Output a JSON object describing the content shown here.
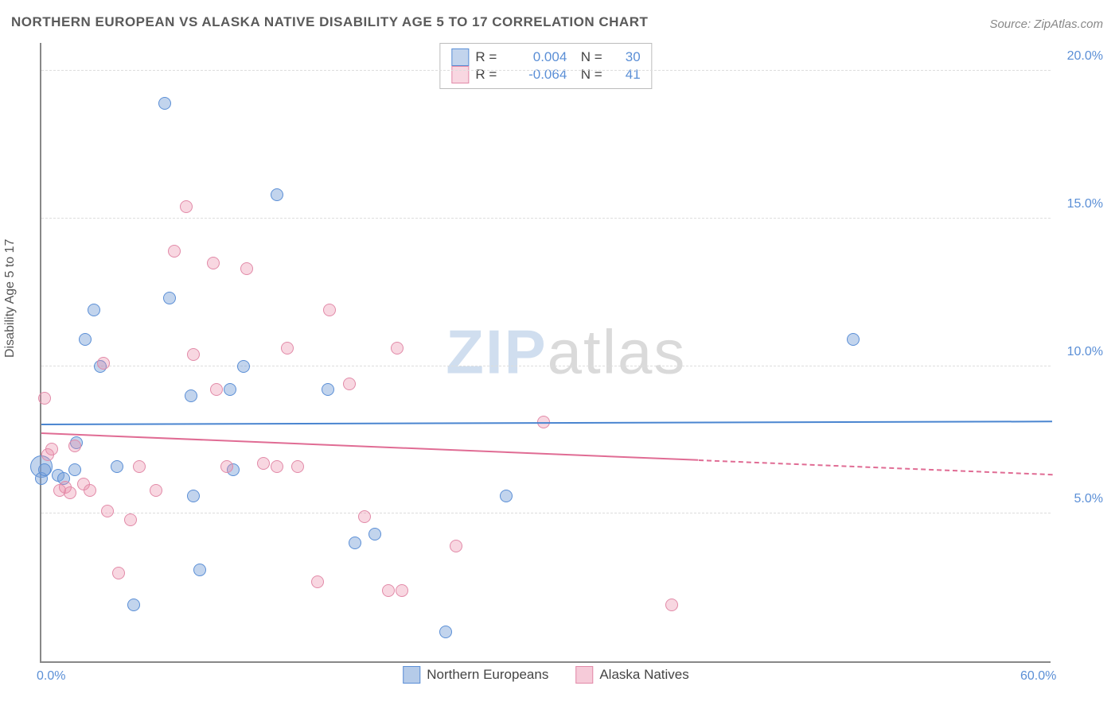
{
  "title": "NORTHERN EUROPEAN VS ALASKA NATIVE DISABILITY AGE 5 TO 17 CORRELATION CHART",
  "source": "Source: ZipAtlas.com",
  "ylabel": "Disability Age 5 to 17",
  "watermark": {
    "zip": "ZIP",
    "atlas": "atlas"
  },
  "chart": {
    "type": "scatter",
    "xlim": [
      0,
      60
    ],
    "ylim": [
      0,
      21
    ],
    "yticks": [
      5,
      10,
      15,
      20
    ],
    "ytick_labels": [
      "5.0%",
      "10.0%",
      "15.0%",
      "20.0%"
    ],
    "xticks": [
      0,
      60
    ],
    "xtick_labels": [
      "0.0%",
      "60.0%"
    ],
    "grid_color": "#dddddd",
    "axis_color": "#888888",
    "background": "#ffffff",
    "marker_radius": 8,
    "series": [
      {
        "name": "Northern Europeans",
        "key": "ne",
        "fill": "rgba(120,160,215,0.45)",
        "stroke": "#5b8fd6",
        "R": "0.004",
        "N": "30",
        "trend": {
          "y1": 8.0,
          "y2": 8.1,
          "x1": 0,
          "x2": 60,
          "color": "#4a85d0",
          "width": 2,
          "solid_to_x": 60
        },
        "points": [
          [
            0.0,
            6.2
          ],
          [
            0.2,
            6.5
          ],
          [
            1.0,
            6.3
          ],
          [
            1.3,
            6.2
          ],
          [
            2.0,
            6.5
          ],
          [
            2.1,
            7.4
          ],
          [
            2.6,
            10.9
          ],
          [
            3.1,
            11.9
          ],
          [
            3.5,
            10.0
          ],
          [
            4.5,
            6.6
          ],
          [
            5.5,
            1.9
          ],
          [
            7.3,
            18.9
          ],
          [
            7.6,
            12.3
          ],
          [
            8.9,
            9.0
          ],
          [
            9.0,
            5.6
          ],
          [
            9.4,
            3.1
          ],
          [
            11.2,
            9.2
          ],
          [
            11.4,
            6.5
          ],
          [
            12.0,
            10.0
          ],
          [
            14.0,
            15.8
          ],
          [
            17.0,
            9.2
          ],
          [
            18.6,
            4.0
          ],
          [
            19.8,
            4.3
          ],
          [
            24.0,
            1.0
          ],
          [
            27.6,
            5.6
          ],
          [
            48.2,
            10.9
          ]
        ],
        "big_points": [
          [
            0.0,
            6.6,
            14
          ]
        ]
      },
      {
        "name": "Alaska Natives",
        "key": "an",
        "fill": "rgba(235,140,170,0.35)",
        "stroke": "#e28aa8",
        "R": "-0.064",
        "N": "41",
        "trend": {
          "y1": 7.7,
          "y2": 6.3,
          "x1": 0,
          "x2": 60,
          "color": "#e06c94",
          "width": 2,
          "solid_to_x": 39
        },
        "points": [
          [
            0.2,
            8.9
          ],
          [
            0.4,
            7.0
          ],
          [
            0.6,
            7.2
          ],
          [
            1.1,
            5.8
          ],
          [
            1.4,
            5.9
          ],
          [
            1.7,
            5.7
          ],
          [
            2.0,
            7.3
          ],
          [
            2.5,
            6.0
          ],
          [
            2.9,
            5.8
          ],
          [
            3.9,
            5.1
          ],
          [
            3.7,
            10.1
          ],
          [
            4.6,
            3.0
          ],
          [
            5.3,
            4.8
          ],
          [
            5.8,
            6.6
          ],
          [
            6.8,
            5.8
          ],
          [
            7.9,
            13.9
          ],
          [
            8.6,
            15.4
          ],
          [
            9.0,
            10.4
          ],
          [
            10.2,
            13.5
          ],
          [
            10.4,
            9.2
          ],
          [
            11.0,
            6.6
          ],
          [
            12.2,
            13.3
          ],
          [
            13.2,
            6.7
          ],
          [
            14.0,
            6.6
          ],
          [
            14.6,
            10.6
          ],
          [
            15.2,
            6.6
          ],
          [
            16.4,
            2.7
          ],
          [
            17.1,
            11.9
          ],
          [
            18.3,
            9.4
          ],
          [
            19.2,
            4.9
          ],
          [
            20.6,
            2.4
          ],
          [
            21.1,
            10.6
          ],
          [
            21.4,
            2.4
          ],
          [
            24.6,
            3.9
          ],
          [
            29.8,
            8.1
          ],
          [
            37.4,
            1.9
          ]
        ]
      }
    ],
    "legend_bottom": [
      {
        "label": "Northern Europeans",
        "fill": "rgba(120,160,215,0.55)",
        "stroke": "#5b8fd6"
      },
      {
        "label": "Alaska Natives",
        "fill": "rgba(235,140,170,0.45)",
        "stroke": "#e28aa8"
      }
    ]
  }
}
